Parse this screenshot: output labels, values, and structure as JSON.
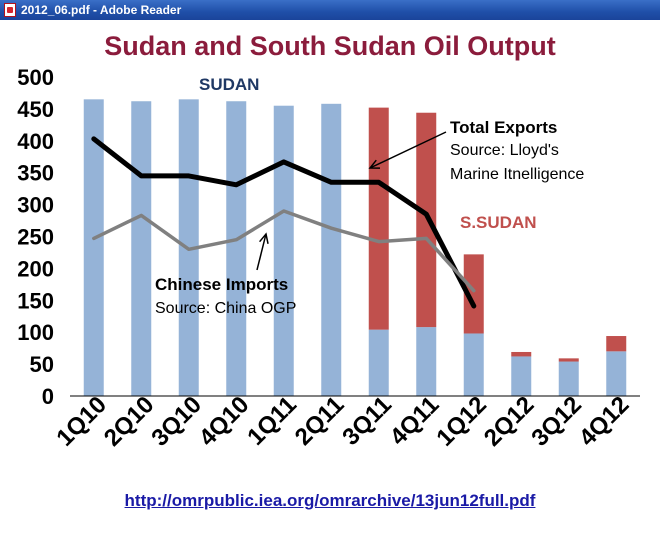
{
  "window": {
    "title": "2012_06.pdf - Adobe Reader",
    "icon": "pdf-icon"
  },
  "source_link": "http://omrpublic.iea.org/omrarchive/13jun12full.pdf",
  "chart_data": {
    "type": "bar",
    "title": "Sudan and South Sudan Oil Output",
    "categories": [
      "1Q10",
      "2Q10",
      "3Q10",
      "4Q10",
      "1Q11",
      "2Q11",
      "3Q11",
      "4Q11",
      "1Q12",
      "2Q12",
      "3Q12",
      "4Q12"
    ],
    "ylim": [
      0,
      500
    ],
    "yticks": [
      0,
      50,
      100,
      150,
      200,
      250,
      300,
      350,
      400,
      450,
      500
    ],
    "grid": false,
    "stacked": true,
    "series": [
      {
        "name": "SUDAN",
        "kind": "bar",
        "color": "#95b3d7",
        "values": [
          465,
          462,
          465,
          462,
          455,
          458,
          104,
          108,
          98,
          62,
          54,
          70
        ]
      },
      {
        "name": "S.SUDAN",
        "kind": "bar",
        "color": "#c0504d",
        "values": [
          0,
          0,
          0,
          0,
          0,
          0,
          348,
          336,
          124,
          7,
          5,
          24
        ]
      },
      {
        "name": "Total Exports",
        "kind": "line",
        "color": "#000000",
        "values": [
          403,
          345,
          345,
          331,
          367,
          335,
          335,
          285,
          141,
          null,
          null,
          null
        ]
      },
      {
        "name": "Chinese Imports",
        "kind": "line",
        "color": "#808080",
        "values": [
          247,
          283,
          230,
          245,
          290,
          263,
          242,
          247,
          165,
          null,
          null,
          null
        ]
      }
    ],
    "annotations": [
      {
        "text": "SUDAN",
        "color": "#1f3864"
      },
      {
        "text": "S.SUDAN",
        "color": "#c0504d"
      },
      {
        "text": "Total Exports",
        "subtext": [
          "Source: Lloyd's",
          "Marine Itnelligence"
        ],
        "color": "#000000"
      },
      {
        "text": "Chinese Imports",
        "subtext": [
          "Source: China OGP"
        ],
        "color": "#000000"
      }
    ],
    "title_color": "#8b1c3c"
  }
}
